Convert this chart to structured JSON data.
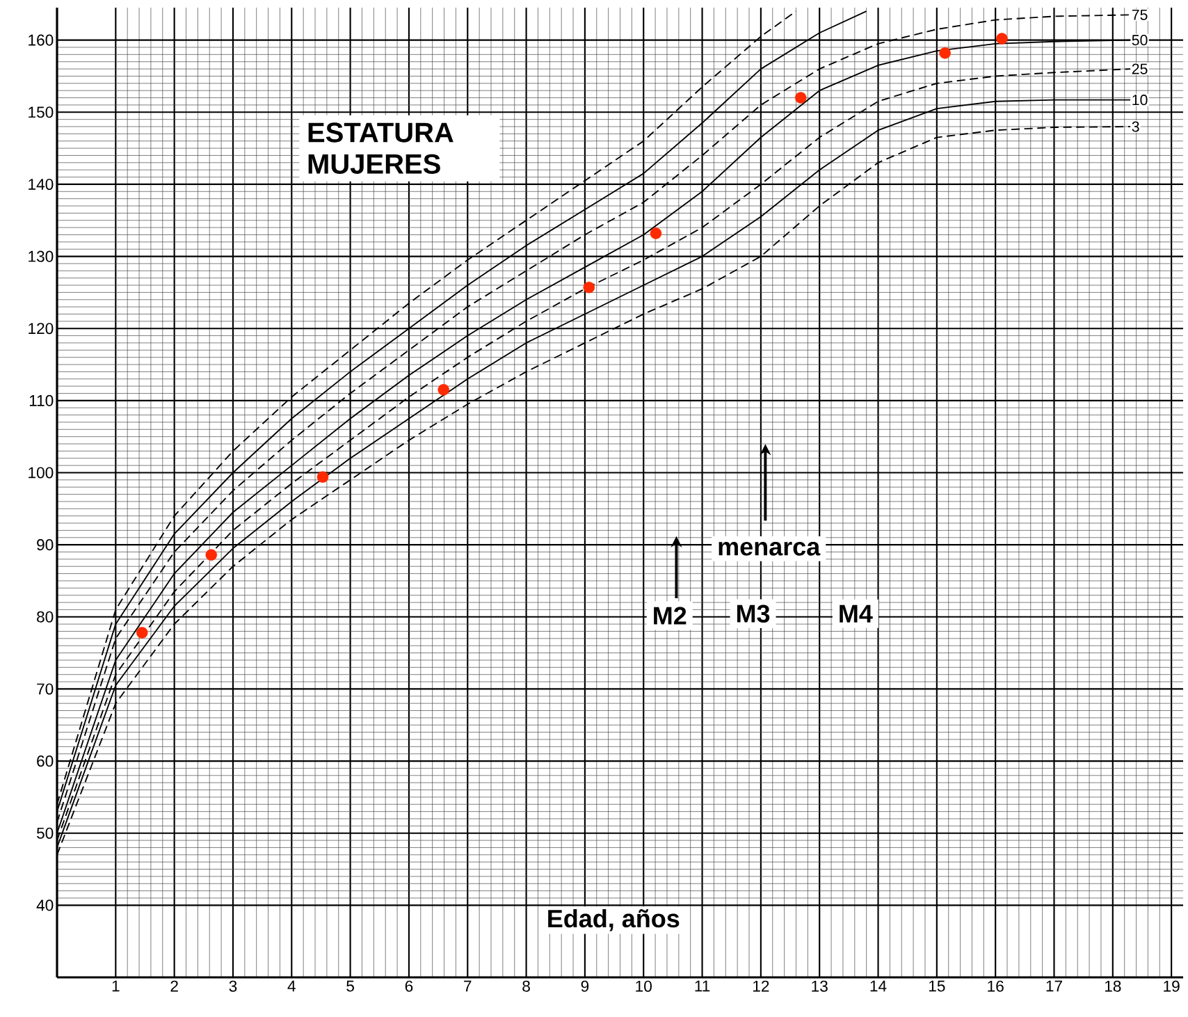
{
  "chart_data": {
    "type": "line",
    "title": "ESTATURA MUJERES",
    "xlabel": "Edad, años",
    "xlim": [
      0,
      19.2
    ],
    "ylim": [
      30,
      164.5
    ],
    "xticks": [
      1,
      2,
      3,
      4,
      5,
      6,
      7,
      8,
      9,
      10,
      11,
      12,
      13,
      14,
      15,
      16,
      17,
      18,
      19
    ],
    "yticks": [
      40,
      50,
      60,
      70,
      80,
      90,
      100,
      110,
      120,
      130,
      140,
      150,
      160
    ],
    "grid": true,
    "annotations": [
      "menarca",
      "M2",
      "M3",
      "M4"
    ],
    "series": [
      {
        "color": "#000000",
        "line_style": "dashed",
        "x": [
          0,
          1,
          2,
          3,
          4,
          5,
          6,
          7,
          8,
          9,
          10,
          11,
          12,
          12.6
        ],
        "values": [
          54,
          81,
          94,
          103,
          110.5,
          117,
          123.5,
          129.5,
          135,
          140.5,
          146,
          153.5,
          160.5,
          164
        ]
      },
      {
        "color": "#000000",
        "line_style": "solid",
        "x": [
          0,
          1,
          2,
          3,
          4,
          5,
          6,
          7,
          8,
          9,
          10,
          11,
          12,
          13,
          13.8
        ],
        "values": [
          53,
          79,
          91.5,
          100,
          107.5,
          114,
          120,
          126,
          131.5,
          136.5,
          141.5,
          148.5,
          156,
          161,
          164
        ]
      },
      {
        "name": "75",
        "color": "#000000",
        "line_style": "dashed",
        "x": [
          0,
          1,
          2,
          3,
          4,
          5,
          6,
          7,
          8,
          9,
          10,
          11,
          12,
          13,
          14,
          15,
          16,
          17,
          18.3
        ],
        "values": [
          51.5,
          77,
          89,
          97.5,
          104.5,
          111,
          117,
          123,
          128,
          133,
          137.5,
          144,
          151,
          156,
          159.5,
          161.5,
          162.8,
          163.3,
          163.5
        ]
      },
      {
        "name": "50",
        "color": "#000000",
        "line_style": "solid",
        "x": [
          0,
          1,
          2,
          3,
          4,
          5,
          6,
          7,
          8,
          9,
          10,
          11,
          12,
          13,
          14,
          15,
          16,
          17,
          18.3
        ],
        "values": [
          50,
          74,
          86,
          94.5,
          101,
          107.5,
          113.5,
          119,
          124,
          128.5,
          133,
          139,
          146.5,
          153,
          156.5,
          158.5,
          159.5,
          159.8,
          160
        ]
      },
      {
        "name": "25",
        "color": "#000000",
        "line_style": "dashed",
        "x": [
          0,
          1,
          2,
          3,
          4,
          5,
          6,
          7,
          8,
          9,
          10,
          11,
          12,
          13,
          14,
          15,
          16,
          17,
          18.3
        ],
        "values": [
          49,
          72,
          83.5,
          92,
          98.5,
          104.5,
          110.5,
          116,
          121,
          125.5,
          129.5,
          134,
          140,
          146.5,
          151.5,
          154,
          155,
          155.5,
          156
        ]
      },
      {
        "name": "10",
        "color": "#000000",
        "line_style": "solid",
        "x": [
          0,
          1,
          2,
          3,
          4,
          5,
          6,
          7,
          8,
          9,
          10,
          11,
          12,
          13,
          14,
          15,
          16,
          17,
          18.3
        ],
        "values": [
          48,
          70.5,
          81.5,
          89.5,
          96,
          102,
          107.5,
          113,
          118,
          122,
          126,
          130,
          135.5,
          142,
          147.5,
          150.5,
          151.5,
          151.7,
          151.7
        ]
      },
      {
        "name": "3",
        "color": "#000000",
        "line_style": "dashed",
        "x": [
          0,
          1,
          2,
          3,
          4,
          5,
          6,
          7,
          8,
          9,
          10,
          11,
          12,
          13,
          14,
          15,
          16,
          17,
          18.3
        ],
        "values": [
          47,
          68,
          79,
          87,
          93.5,
          99,
          104.5,
          109.5,
          114,
          118,
          122,
          125.5,
          130,
          137,
          143,
          146.5,
          147.5,
          147.9,
          148
        ]
      },
      {
        "type": "scatter",
        "color": "#ff2a00",
        "marker": "circle",
        "x": [
          1.45,
          2.63,
          4.53,
          6.59,
          9.07,
          10.21,
          12.68,
          15.14,
          16.11
        ],
        "values": [
          77.8,
          88.6,
          99.4,
          111.5,
          125.7,
          133.2,
          152,
          158.2,
          160.2
        ]
      }
    ]
  }
}
